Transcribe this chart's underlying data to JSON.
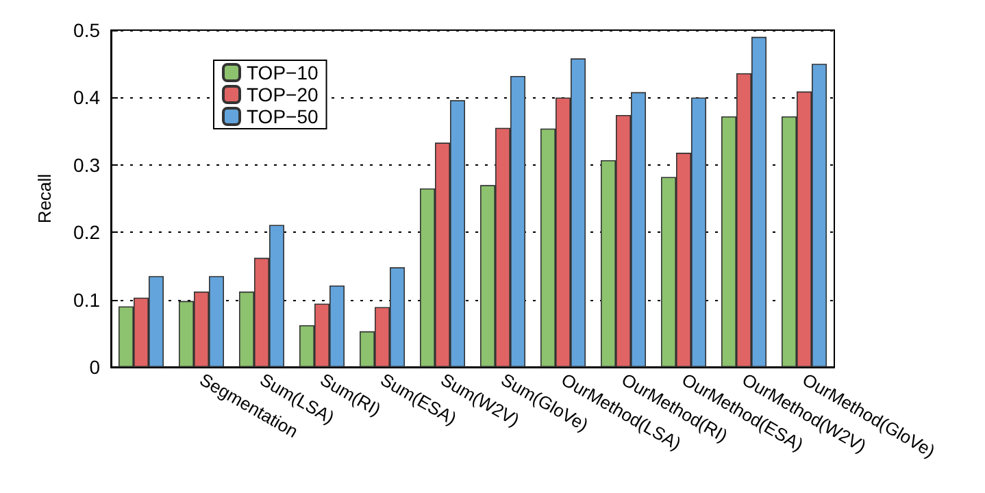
{
  "chart_data": {
    "type": "bar",
    "ylabel": "Recall",
    "categories": [
      null,
      "Segmentation",
      "Sum(LSA)",
      "Sum(RI)",
      "Sum(ESA)",
      "Sum(W2V)",
      "Sum(GloVe)",
      "OurMethod(LSA)",
      "OurMethod(RI)",
      "OurMethod(ESA)",
      "OurMethod(W2V)",
      "OurMethod(GloVe)"
    ],
    "series": [
      {
        "name": "TOP−10",
        "color": "#8dc26f",
        "values": [
          0.09,
          0.098,
          0.112,
          0.062,
          0.053,
          0.265,
          0.27,
          0.354,
          0.307,
          0.282,
          0.372,
          0.372
        ]
      },
      {
        "name": "TOP−20",
        "color": "#e06464",
        "values": [
          0.103,
          0.112,
          0.162,
          0.094,
          0.089,
          0.333,
          0.355,
          0.4,
          0.374,
          0.318,
          0.436,
          0.409
        ]
      },
      {
        "name": "TOP−50",
        "color": "#63a4dc",
        "values": [
          0.135,
          0.135,
          0.211,
          0.121,
          0.148,
          0.396,
          0.432,
          0.458,
          0.408,
          0.4,
          0.49,
          0.45
        ]
      }
    ],
    "ylim": [
      0,
      0.5
    ],
    "yticks": [
      0,
      0.1,
      0.2,
      0.3,
      0.4,
      0.5
    ],
    "grid": "y",
    "legend": "top left"
  }
}
